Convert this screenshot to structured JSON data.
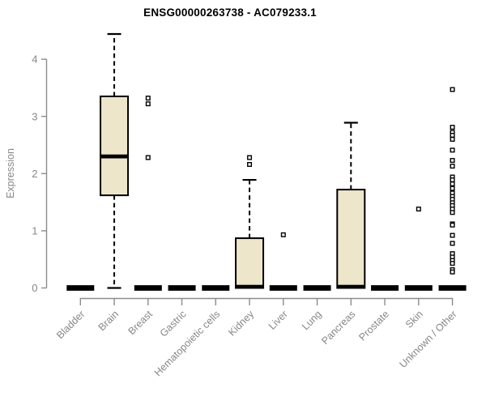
{
  "window": {
    "background": "#ffffff"
  },
  "chart_data": {
    "type": "boxplot",
    "title": "ENSG00000263738 - AC079233.1",
    "xlabel": "",
    "ylabel": "Expression",
    "ylim": [
      0,
      4.5
    ],
    "yticks": [
      0,
      1,
      2,
      3,
      4
    ],
    "grid": false,
    "legend": "none",
    "categories": [
      "Bladder",
      "Brain",
      "Breast",
      "Gastric",
      "Hematopoietic cells",
      "Kidney",
      "Liver",
      "Lung",
      "Pancreas",
      "Prostate",
      "Skin",
      "Unknown / Other"
    ],
    "series": [
      {
        "name": "Bladder",
        "q1": 0,
        "median": 0,
        "q3": 0,
        "whisker_low": 0,
        "whisker_high": 0,
        "outliers": []
      },
      {
        "name": "Brain",
        "q1": 1.62,
        "median": 2.3,
        "q3": 3.35,
        "whisker_low": 0,
        "whisker_high": 4.44,
        "outliers": []
      },
      {
        "name": "Breast",
        "q1": 0,
        "median": 0,
        "q3": 0,
        "whisker_low": 0,
        "whisker_high": 0,
        "outliers": [
          3.32,
          3.22,
          2.28
        ]
      },
      {
        "name": "Gastric",
        "q1": 0,
        "median": 0,
        "q3": 0,
        "whisker_low": 0,
        "whisker_high": 0,
        "outliers": []
      },
      {
        "name": "Hematopoietic cells",
        "q1": 0,
        "median": 0,
        "q3": 0,
        "whisker_low": 0,
        "whisker_high": 0,
        "outliers": []
      },
      {
        "name": "Kidney",
        "q1": 0,
        "median": 0.02,
        "q3": 0.87,
        "whisker_low": 0,
        "whisker_high": 1.89,
        "outliers": [
          2.28,
          2.16
        ]
      },
      {
        "name": "Liver",
        "q1": 0,
        "median": 0,
        "q3": 0,
        "whisker_low": 0,
        "whisker_high": 0,
        "outliers": [
          0.93
        ]
      },
      {
        "name": "Lung",
        "q1": 0,
        "median": 0,
        "q3": 0,
        "whisker_low": 0,
        "whisker_high": 0,
        "outliers": []
      },
      {
        "name": "Pancreas",
        "q1": 0,
        "median": 0.02,
        "q3": 1.72,
        "whisker_low": 0,
        "whisker_high": 2.89,
        "outliers": []
      },
      {
        "name": "Prostate",
        "q1": 0,
        "median": 0,
        "q3": 0,
        "whisker_low": 0,
        "whisker_high": 0,
        "outliers": []
      },
      {
        "name": "Skin",
        "q1": 0,
        "median": 0,
        "q3": 0,
        "whisker_low": 0,
        "whisker_high": 0,
        "outliers": [
          1.38
        ]
      },
      {
        "name": "Unknown / Other",
        "q1": 0,
        "median": 0,
        "q3": 0,
        "whisker_low": 0,
        "whisker_high": 0,
        "outliers": [
          3.47,
          2.81,
          2.72,
          2.67,
          2.6,
          2.41,
          2.23,
          2.13,
          1.94,
          1.89,
          1.82,
          1.74,
          1.66,
          1.6,
          1.55,
          1.49,
          1.44,
          1.38,
          1.32,
          1.12,
          1.1,
          0.92,
          0.78,
          0.6,
          0.54,
          0.48,
          0.43,
          0.32,
          0.28
        ]
      }
    ],
    "colors": {
      "box_fill": "#ede6ca",
      "box_border": "#000000",
      "median": "#000000",
      "whisker": "#000000",
      "outlier_stroke": "#000000",
      "outlier_fill": "#ffffff",
      "axis": "#8c8c8c",
      "tick_label": "#878787",
      "axis_label": "#878787",
      "title": "#000000"
    }
  }
}
